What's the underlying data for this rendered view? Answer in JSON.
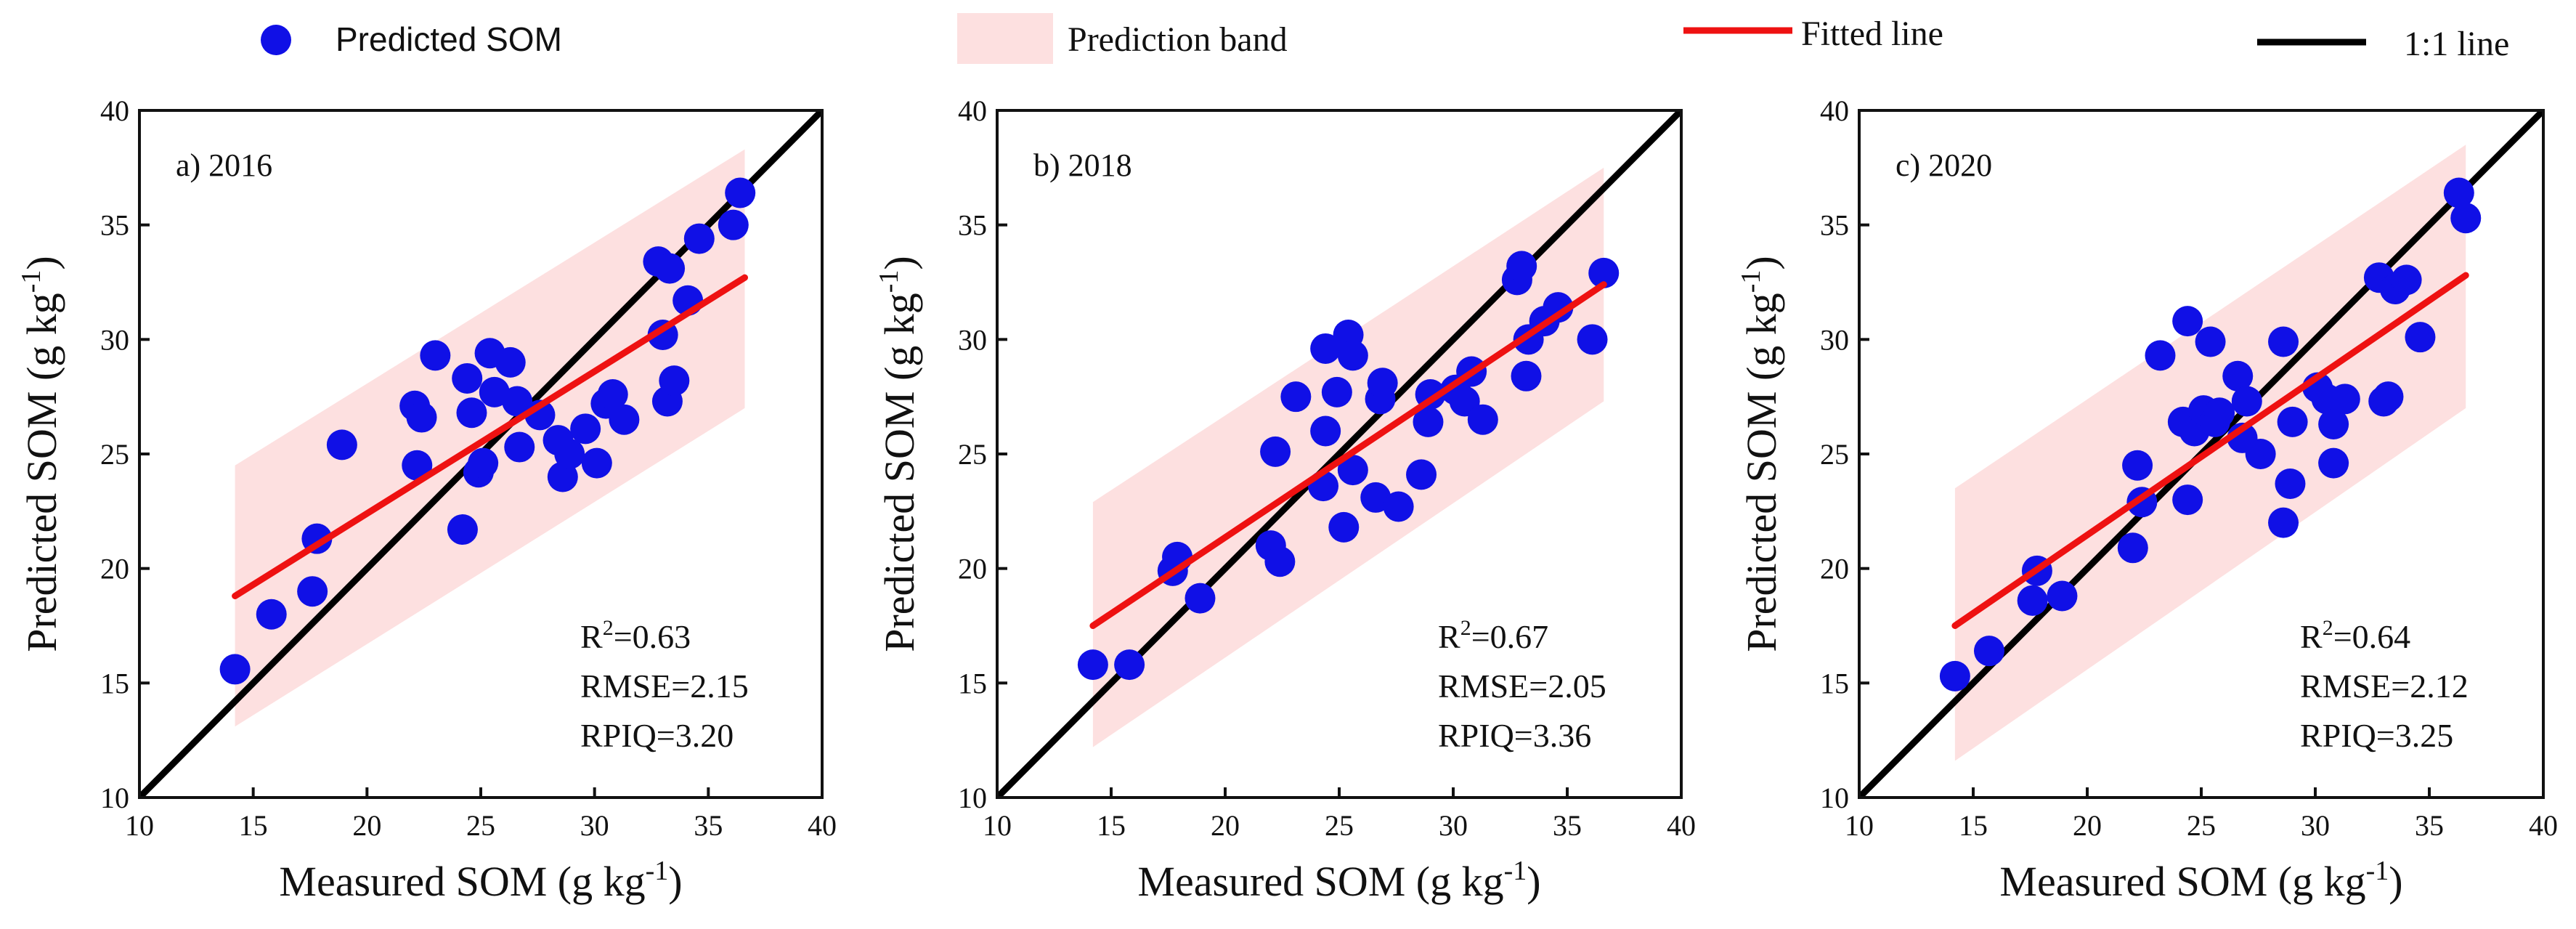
{
  "legend": {
    "predicted": "Predicted SOM",
    "band": "Prediction band",
    "fitted": "Fitted line",
    "oneone": "1:1 line"
  },
  "colors": {
    "points": "#1010e6",
    "band": "#fde0e0",
    "fitted": "#ee1111",
    "oneone": "#000000",
    "axis": "#111111"
  },
  "chart_data": [
    {
      "type": "scatter",
      "panel_label": "a) 2016",
      "xlabel": "Measured SOM (g kg",
      "xlabel_sup": "-1",
      "ylabel": "Predicted SOM (g kg",
      "ylabel_sup": "-1",
      "xlim": [
        10,
        40
      ],
      "ylim": [
        10,
        40
      ],
      "xticks": [
        10,
        15,
        20,
        25,
        30,
        35,
        40
      ],
      "yticks": [
        10,
        15,
        20,
        25,
        30,
        35,
        40
      ],
      "fit_line": {
        "x": [
          14.2,
          36.6
        ],
        "y": [
          18.8,
          32.7
        ]
      },
      "band": {
        "x": [
          14.2,
          36.6
        ],
        "lower": [
          13.1,
          27.0
        ],
        "upper": [
          24.5,
          38.3
        ]
      },
      "stats": {
        "r2": "R",
        "r2_sup": "2",
        "r2_value": "=0.63",
        "rmse": "RMSE=2.15",
        "rpiq": "RPIQ=3.20"
      },
      "points": [
        [
          14.2,
          15.6
        ],
        [
          15.8,
          18.0
        ],
        [
          17.6,
          19.0
        ],
        [
          17.8,
          21.3
        ],
        [
          18.9,
          25.4
        ],
        [
          22.1,
          27.1
        ],
        [
          22.2,
          24.5
        ],
        [
          22.4,
          26.6
        ],
        [
          23.0,
          29.3
        ],
        [
          24.2,
          21.7
        ],
        [
          24.4,
          28.3
        ],
        [
          24.6,
          26.8
        ],
        [
          24.9,
          24.2
        ],
        [
          25.1,
          24.6
        ],
        [
          25.4,
          29.4
        ],
        [
          25.6,
          27.7
        ],
        [
          26.3,
          29.0
        ],
        [
          26.6,
          27.3
        ],
        [
          26.7,
          25.3
        ],
        [
          27.6,
          26.7
        ],
        [
          28.4,
          25.6
        ],
        [
          28.6,
          24.0
        ],
        [
          28.9,
          25.0
        ],
        [
          29.6,
          26.1
        ],
        [
          30.1,
          24.6
        ],
        [
          30.5,
          27.2
        ],
        [
          30.8,
          27.6
        ],
        [
          31.3,
          26.5
        ],
        [
          32.8,
          33.4
        ],
        [
          33.0,
          30.2
        ],
        [
          33.2,
          27.3
        ],
        [
          33.3,
          33.1
        ],
        [
          33.5,
          28.2
        ],
        [
          34.1,
          31.7
        ],
        [
          34.6,
          34.4
        ],
        [
          36.1,
          35.0
        ],
        [
          36.4,
          36.4
        ]
      ]
    },
    {
      "type": "scatter",
      "panel_label": "b) 2018",
      "xlabel": "Measured SOM (g kg",
      "xlabel_sup": "-1",
      "ylabel": "Predicted SOM (g kg",
      "ylabel_sup": "-1",
      "xlim": [
        10,
        40
      ],
      "ylim": [
        10,
        40
      ],
      "xticks": [
        10,
        15,
        20,
        25,
        30,
        35,
        40
      ],
      "yticks": [
        10,
        15,
        20,
        25,
        30,
        35,
        40
      ],
      "fit_line": {
        "x": [
          14.2,
          36.6
        ],
        "y": [
          17.5,
          32.4
        ]
      },
      "band": {
        "x": [
          14.2,
          36.6
        ],
        "lower": [
          12.2,
          27.3
        ],
        "upper": [
          22.9,
          37.5
        ]
      },
      "stats": {
        "r2": "R",
        "r2_sup": "2",
        "r2_value": "=0.67",
        "rmse": "RMSE=2.05",
        "rpiq": "RPIQ=3.36"
      },
      "points": [
        [
          14.2,
          15.8
        ],
        [
          15.8,
          15.8
        ],
        [
          17.7,
          19.9
        ],
        [
          17.9,
          20.5
        ],
        [
          18.9,
          18.7
        ],
        [
          22.0,
          21.0
        ],
        [
          22.2,
          25.1
        ],
        [
          22.4,
          20.3
        ],
        [
          23.1,
          27.5
        ],
        [
          24.3,
          23.6
        ],
        [
          24.4,
          29.6
        ],
        [
          24.4,
          26.0
        ],
        [
          24.9,
          27.7
        ],
        [
          25.2,
          21.8
        ],
        [
          25.4,
          30.2
        ],
        [
          25.6,
          29.3
        ],
        [
          25.6,
          24.3
        ],
        [
          26.6,
          23.1
        ],
        [
          26.8,
          27.4
        ],
        [
          26.9,
          28.1
        ],
        [
          27.6,
          22.7
        ],
        [
          28.6,
          24.1
        ],
        [
          28.9,
          26.4
        ],
        [
          29.0,
          27.6
        ],
        [
          30.1,
          27.8
        ],
        [
          30.5,
          27.3
        ],
        [
          30.8,
          28.6
        ],
        [
          31.3,
          26.5
        ],
        [
          32.8,
          32.6
        ],
        [
          33.0,
          33.2
        ],
        [
          33.2,
          28.4
        ],
        [
          33.3,
          30.0
        ],
        [
          34.0,
          30.8
        ],
        [
          34.6,
          31.4
        ],
        [
          36.1,
          30.0
        ],
        [
          36.6,
          32.9
        ]
      ]
    },
    {
      "type": "scatter",
      "panel_label": "c) 2020",
      "xlabel": "Measured SOM (g kg",
      "xlabel_sup": "-1",
      "ylabel": "Predicted SOM (g kg",
      "ylabel_sup": "-1",
      "xlim": [
        10,
        40
      ],
      "ylim": [
        10,
        40
      ],
      "xticks": [
        10,
        15,
        20,
        25,
        30,
        35,
        40
      ],
      "yticks": [
        10,
        15,
        20,
        25,
        30,
        35,
        40
      ],
      "fit_line": {
        "x": [
          14.2,
          36.6
        ],
        "y": [
          17.5,
          32.8
        ]
      },
      "band": {
        "x": [
          14.2,
          36.6
        ],
        "lower": [
          11.6,
          27.0
        ],
        "upper": [
          23.5,
          38.5
        ]
      },
      "stats": {
        "r2": "R",
        "r2_sup": "2",
        "r2_value": "=0.64",
        "rmse": "RMSE=2.12",
        "rpiq": "RPIQ=3.25"
      },
      "points": [
        [
          14.2,
          15.3
        ],
        [
          15.7,
          16.4
        ],
        [
          17.6,
          18.6
        ],
        [
          17.8,
          19.9
        ],
        [
          18.9,
          18.8
        ],
        [
          22.0,
          20.9
        ],
        [
          22.2,
          24.5
        ],
        [
          22.4,
          22.9
        ],
        [
          23.2,
          29.3
        ],
        [
          24.2,
          26.4
        ],
        [
          24.4,
          30.8
        ],
        [
          24.4,
          23.0
        ],
        [
          24.7,
          26.0
        ],
        [
          25.1,
          26.9
        ],
        [
          25.4,
          29.9
        ],
        [
          25.6,
          26.4
        ],
        [
          25.8,
          26.8
        ],
        [
          26.6,
          28.4
        ],
        [
          26.8,
          25.7
        ],
        [
          27.0,
          27.3
        ],
        [
          27.6,
          25.0
        ],
        [
          28.6,
          22.0
        ],
        [
          28.6,
          29.9
        ],
        [
          28.9,
          23.7
        ],
        [
          29.0,
          26.4
        ],
        [
          30.1,
          27.9
        ],
        [
          30.5,
          27.4
        ],
        [
          30.8,
          26.3
        ],
        [
          30.8,
          24.6
        ],
        [
          31.3,
          27.4
        ],
        [
          32.8,
          32.7
        ],
        [
          33.0,
          27.3
        ],
        [
          33.2,
          27.5
        ],
        [
          33.5,
          32.2
        ],
        [
          34.0,
          32.6
        ],
        [
          34.6,
          30.1
        ],
        [
          36.3,
          36.4
        ],
        [
          36.6,
          35.3
        ]
      ]
    }
  ]
}
